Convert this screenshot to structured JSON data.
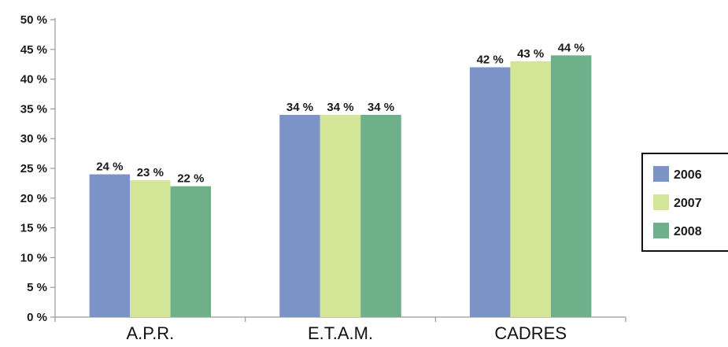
{
  "chart_data": {
    "type": "bar",
    "title": "",
    "xlabel": "",
    "ylabel": "",
    "categories": [
      "A.P.R.",
      "E.T.A.M.",
      "CADRES"
    ],
    "series": [
      {
        "name": "2006",
        "values": [
          24,
          34,
          42
        ],
        "color": "#7b93c6"
      },
      {
        "name": "2007",
        "values": [
          23,
          34,
          43
        ],
        "color": "#d3e597"
      },
      {
        "name": "2008",
        "values": [
          22,
          34,
          44
        ],
        "color": "#6db08a"
      }
    ],
    "value_labels": [
      [
        "24 %",
        "34 %",
        "42 %"
      ],
      [
        "23 %",
        "34 %",
        "43 %"
      ],
      [
        "22 %",
        "34 %",
        "44 %"
      ]
    ],
    "ylim": [
      0,
      50
    ],
    "yticks": [
      0,
      5,
      10,
      15,
      20,
      25,
      30,
      35,
      40,
      45,
      50
    ],
    "ytick_labels": [
      "0 %",
      "5 %",
      "10 %",
      "15 %",
      "20 %",
      "25 %",
      "30 %",
      "35 %",
      "40 %",
      "45 %",
      "50 %"
    ],
    "grid": false,
    "legend_position": "right"
  }
}
